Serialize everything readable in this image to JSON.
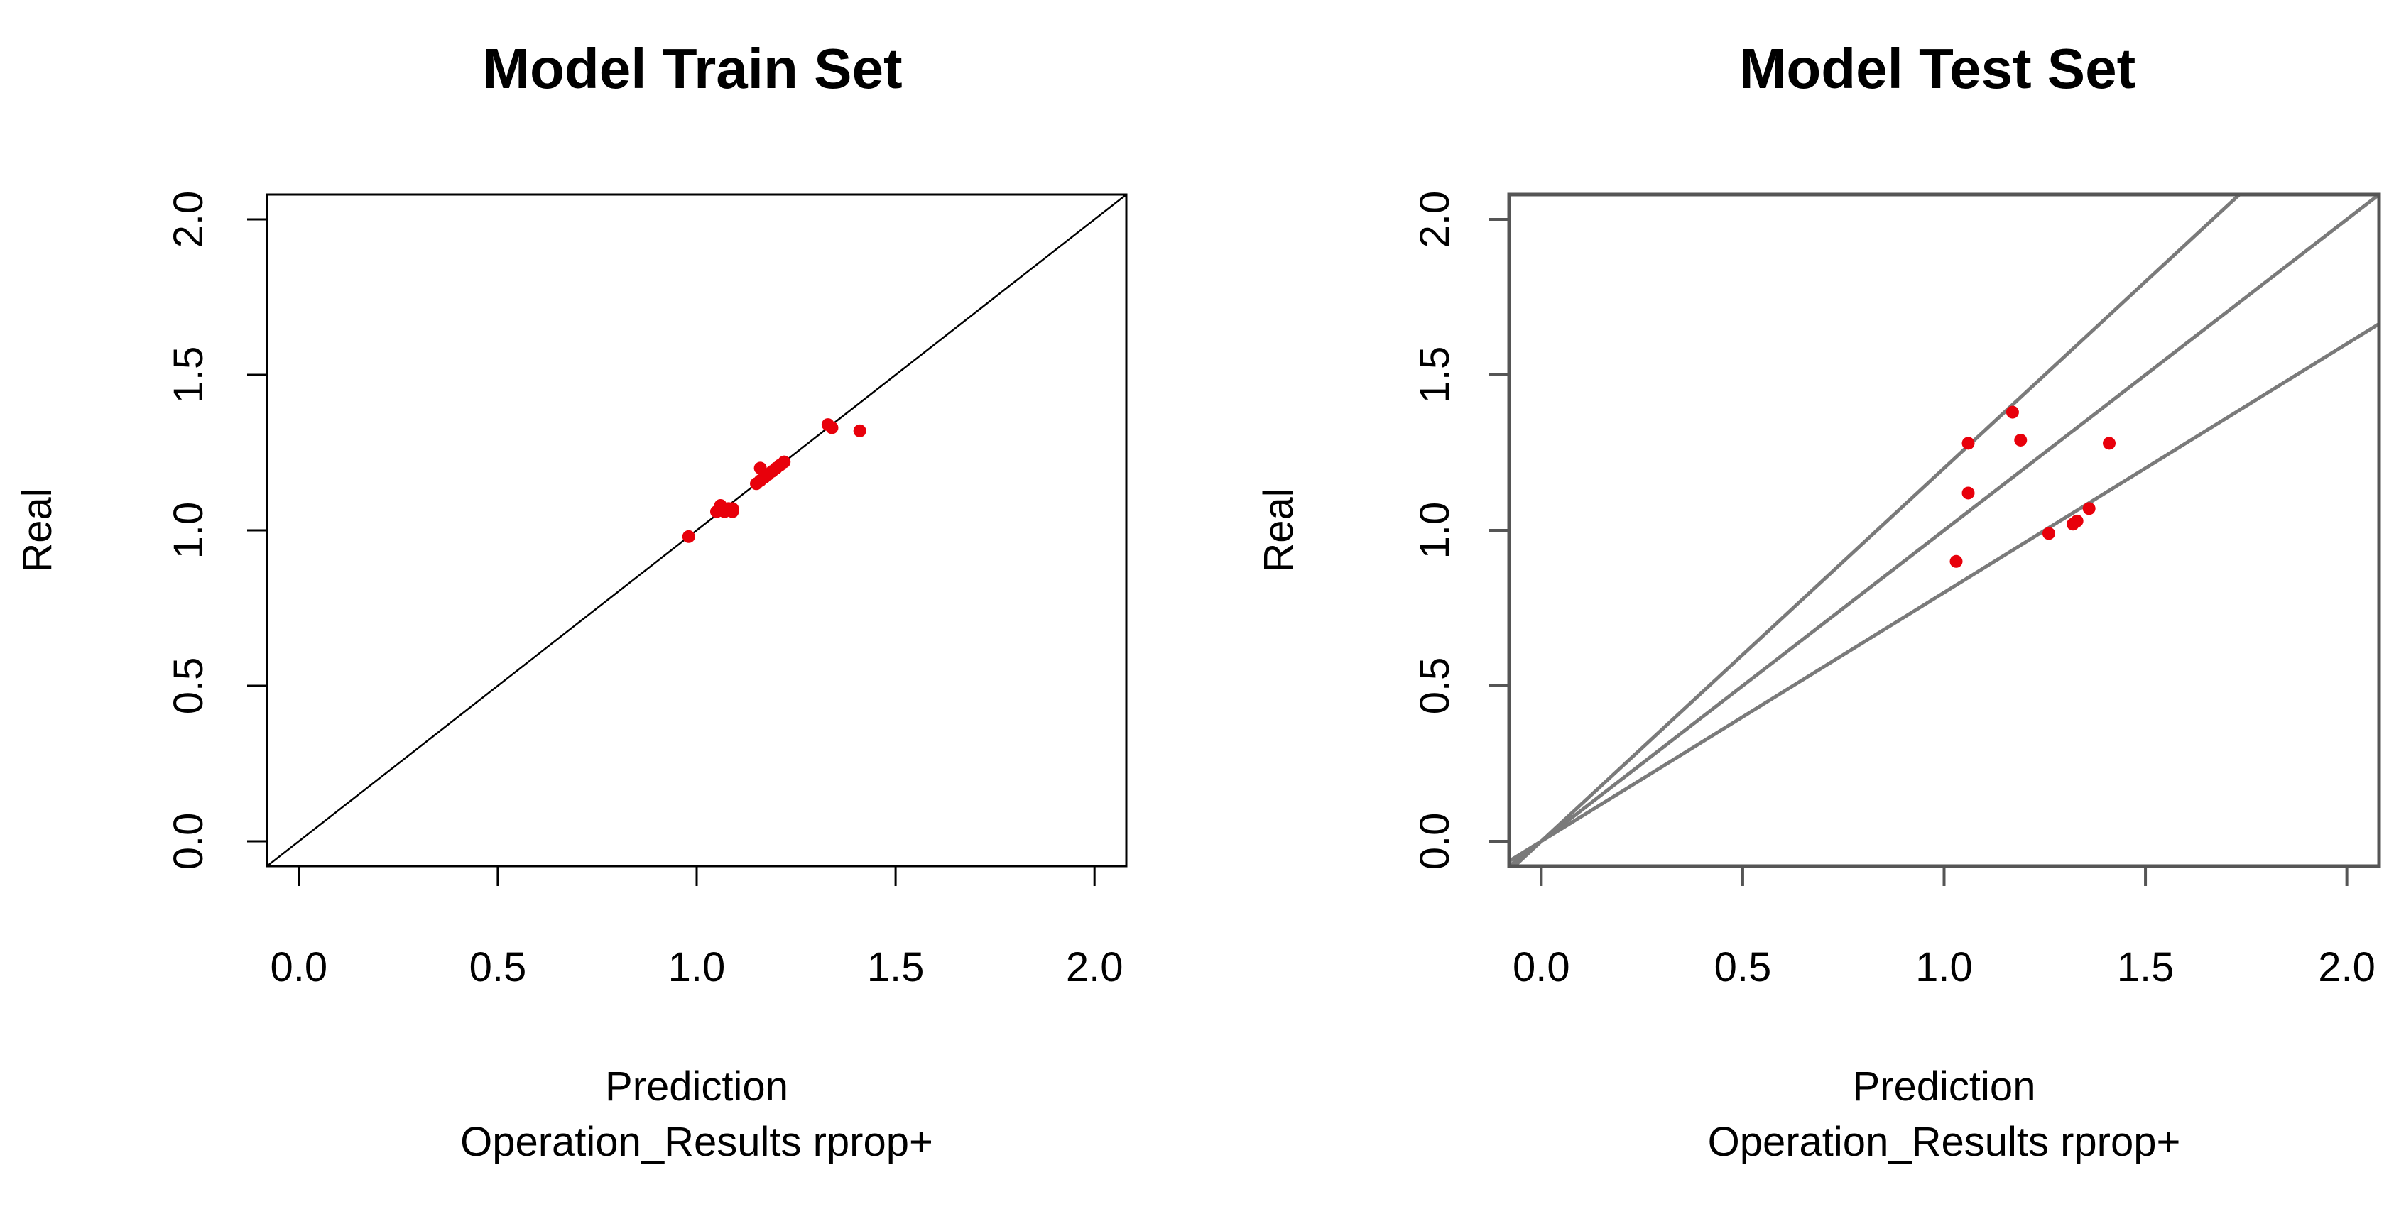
{
  "chart_data": [
    {
      "type": "scatter",
      "title": "Model Train Set",
      "xlabel": "Prediction",
      "xlabel2": "Operation_Results rprop+",
      "ylabel": "Real",
      "xlim": [
        -0.08,
        2.08
      ],
      "ylim": [
        -0.08,
        2.08
      ],
      "xticks": [
        "0.0",
        "0.5",
        "1.0",
        "1.5",
        "2.0"
      ],
      "yticks": [
        "0.0",
        "0.5",
        "1.0",
        "1.5",
        "2.0"
      ],
      "point_color": "#e8000b",
      "reference_lines": [
        {
          "slope": 1
        }
      ],
      "series": [
        {
          "x": [
            0.98,
            1.05,
            1.06,
            1.07,
            1.08,
            1.09,
            1.09,
            1.15,
            1.16,
            1.16,
            1.17,
            1.18,
            1.19,
            1.2,
            1.21,
            1.22,
            1.33,
            1.34,
            1.41
          ],
          "y": [
            0.98,
            1.06,
            1.08,
            1.06,
            1.07,
            1.06,
            1.07,
            1.15,
            1.16,
            1.2,
            1.17,
            1.18,
            1.19,
            1.2,
            1.21,
            1.22,
            1.34,
            1.33,
            1.32
          ]
        }
      ]
    },
    {
      "type": "scatter",
      "title": "Model Test Set",
      "xlabel": "Prediction",
      "xlabel2": "Operation_Results rprop+",
      "ylabel": "Real",
      "xlim": [
        -0.08,
        2.08
      ],
      "ylim": [
        -0.08,
        2.08
      ],
      "xticks": [
        "0.0",
        "0.5",
        "1.0",
        "1.5",
        "2.0"
      ],
      "yticks": [
        "0.0",
        "0.5",
        "1.0",
        "1.5",
        "2.0"
      ],
      "point_color": "#e8000b",
      "reference_lines": [
        {
          "slope": 1.2
        },
        {
          "slope": 1
        },
        {
          "slope": 0.8
        }
      ],
      "series": [
        {
          "x": [
            1.03,
            1.06,
            1.06,
            1.17,
            1.19,
            1.26,
            1.32,
            1.33,
            1.36,
            1.41
          ],
          "y": [
            0.9,
            1.28,
            1.12,
            1.38,
            1.29,
            0.99,
            1.02,
            1.03,
            1.07,
            1.28
          ]
        }
      ]
    }
  ]
}
